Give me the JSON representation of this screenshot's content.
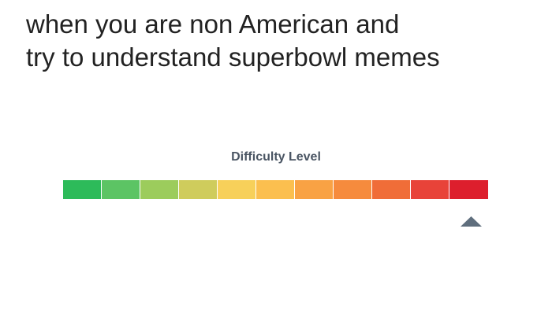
{
  "caption": {
    "lines": [
      "when you are non American and",
      "try to understand superbowl memes"
    ]
  },
  "meter": {
    "label": "Difficulty Level"
  }
}
